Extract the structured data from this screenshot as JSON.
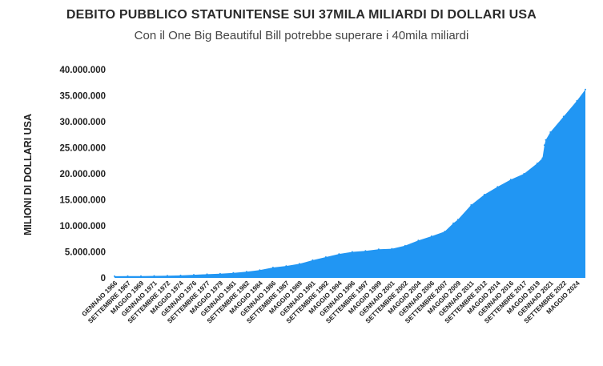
{
  "chart_data": {
    "type": "area",
    "title": "DEBITO PUBBLICO STATUNITENSE SUI 37MILA MILIARDI DI DOLLARI USA",
    "subtitle": "Con il One Big Beautiful Bill potrebbe superare i 40mila miliardi",
    "ylabel": "MILIONI DI DOLLARI USA",
    "xlabel": "",
    "ylim": [
      0,
      40000000
    ],
    "grid": false,
    "color": "#2196F3",
    "y_ticks": [
      {
        "value": 0,
        "label": "0"
      },
      {
        "value": 5000000,
        "label": "5.000.000"
      },
      {
        "value": 10000000,
        "label": "10.000.000"
      },
      {
        "value": 15000000,
        "label": "15.000.000"
      },
      {
        "value": 20000000,
        "label": "20.000.000"
      },
      {
        "value": 25000000,
        "label": "25.000.000"
      },
      {
        "value": 30000000,
        "label": "30.000.000"
      },
      {
        "value": 35000000,
        "label": "35.000.000"
      },
      {
        "value": 40000000,
        "label": "40.000.000"
      }
    ],
    "x_ticks": [
      {
        "date": "1966-01",
        "label": "GENNAIO 1966"
      },
      {
        "date": "1967-09",
        "label": "SETTEMBRE 1967"
      },
      {
        "date": "1969-05",
        "label": "MAGGIO 1969"
      },
      {
        "date": "1971-01",
        "label": "GENNAIO 1971"
      },
      {
        "date": "1972-09",
        "label": "SETTEMBRE 1972"
      },
      {
        "date": "1974-05",
        "label": "MAGGIO 1974"
      },
      {
        "date": "1976-01",
        "label": "GENNAIO 1976"
      },
      {
        "date": "1977-09",
        "label": "SETTEMBRE 1977"
      },
      {
        "date": "1979-05",
        "label": "MAGGIO 1979"
      },
      {
        "date": "1981-01",
        "label": "GENNAIO 1981"
      },
      {
        "date": "1982-09",
        "label": "SETTEMBRE 1982"
      },
      {
        "date": "1984-05",
        "label": "MAGGIO 1984"
      },
      {
        "date": "1986-01",
        "label": "GENNAIO 1986"
      },
      {
        "date": "1987-09",
        "label": "SETTEMBRE 1987"
      },
      {
        "date": "1989-05",
        "label": "MAGGIO 1989"
      },
      {
        "date": "1991-01",
        "label": "GENNAIO 1991"
      },
      {
        "date": "1992-09",
        "label": "SETTEMBRE 1992"
      },
      {
        "date": "1994-05",
        "label": "MAGGIO 1994"
      },
      {
        "date": "1996-01",
        "label": "GENNAIO 1996"
      },
      {
        "date": "1997-09",
        "label": "SETTEMBRE 1997"
      },
      {
        "date": "1999-05",
        "label": "MAGGIO 1999"
      },
      {
        "date": "2001-01",
        "label": "GENNAIO 2001"
      },
      {
        "date": "2002-09",
        "label": "SETTEMBRE 2002"
      },
      {
        "date": "2004-05",
        "label": "MAGGIO 2004"
      },
      {
        "date": "2006-01",
        "label": "GENNAIO 2006"
      },
      {
        "date": "2007-09",
        "label": "SETTEMBRE 2007"
      },
      {
        "date": "2009-05",
        "label": "MAGGIO 2009"
      },
      {
        "date": "2011-01",
        "label": "GENNAIO 2011"
      },
      {
        "date": "2012-09",
        "label": "SETTEMBRE 2012"
      },
      {
        "date": "2014-05",
        "label": "MAGGIO 2014"
      },
      {
        "date": "2016-01",
        "label": "GENNAIO 2016"
      },
      {
        "date": "2017-09",
        "label": "SETTEMBRE 2017"
      },
      {
        "date": "2019-05",
        "label": "MAGGIO 2019"
      },
      {
        "date": "2021-01",
        "label": "GENNAIO 2021"
      },
      {
        "date": "2022-09",
        "label": "SETTEMBRE 2022"
      },
      {
        "date": "2024-05",
        "label": "MAGGIO 2024"
      }
    ],
    "x": [
      "1966-01",
      "1967-09",
      "1969-05",
      "1971-01",
      "1972-09",
      "1974-05",
      "1976-01",
      "1977-09",
      "1979-05",
      "1981-01",
      "1982-09",
      "1984-05",
      "1986-01",
      "1987-09",
      "1989-05",
      "1991-01",
      "1992-09",
      "1994-05",
      "1996-01",
      "1997-09",
      "1999-05",
      "2001-01",
      "2002-09",
      "2004-05",
      "2006-01",
      "2007-09",
      "2008-10",
      "2009-05",
      "2011-01",
      "2012-09",
      "2014-05",
      "2016-01",
      "2017-09",
      "2019-05",
      "2020-01",
      "2020-04",
      "2020-06",
      "2021-01",
      "2022-09",
      "2024-05",
      "2025-06"
    ],
    "values": [
      320000,
      340000,
      360000,
      390000,
      430000,
      480000,
      600000,
      700000,
      800000,
      950000,
      1200000,
      1500000,
      2000000,
      2300000,
      2700000,
      3400000,
      4000000,
      4600000,
      5000000,
      5200000,
      5500000,
      5600000,
      6200000,
      7200000,
      8000000,
      8900000,
      10500000,
      11200000,
      14000000,
      16000000,
      17500000,
      18900000,
      20000000,
      22000000,
      23000000,
      25500000,
      26500000,
      28000000,
      31000000,
      34000000,
      36200000
    ]
  }
}
